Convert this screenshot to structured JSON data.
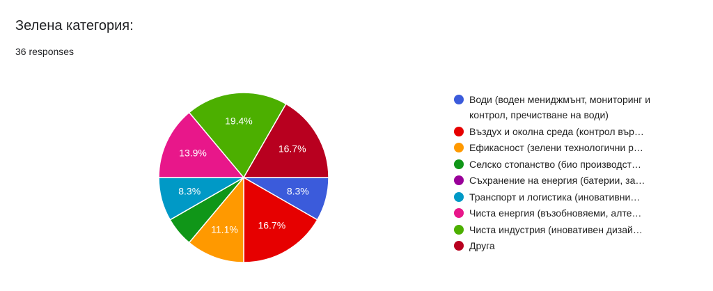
{
  "chart_data": {
    "type": "pie",
    "title": "Зелена категория:",
    "subtitle": "36 responses",
    "categories": [
      "Води (воден мениджмънт, мониторинг и контрол, пречистване на води)",
      "Въздух и околна среда (контрол вър…",
      "Ефикасност (зелени технологични р…",
      "Селско стопанство (био производст…",
      "Съхранение на енергия (батерии, за…",
      "Транспорт и логистика (иновативни…",
      "Чиста енергия (възобновяеми, алте…",
      "Чиста индустрия (иновативен дизай…",
      "Друга"
    ],
    "values": [
      8.3,
      16.7,
      11.1,
      5.6,
      0,
      8.3,
      13.9,
      19.4,
      16.7
    ],
    "value_labels": [
      "8.3%",
      "16.7%",
      "11.1%",
      null,
      null,
      "8.3%",
      "13.9%",
      "19.4%",
      "16.7%"
    ],
    "colors": [
      "#3b5bdb",
      "#e60000",
      "#ff9900",
      "#109618",
      "#990099",
      "#0099c6",
      "#e8178a",
      "#4caf00",
      "#b8001f"
    ],
    "legend": "right"
  }
}
